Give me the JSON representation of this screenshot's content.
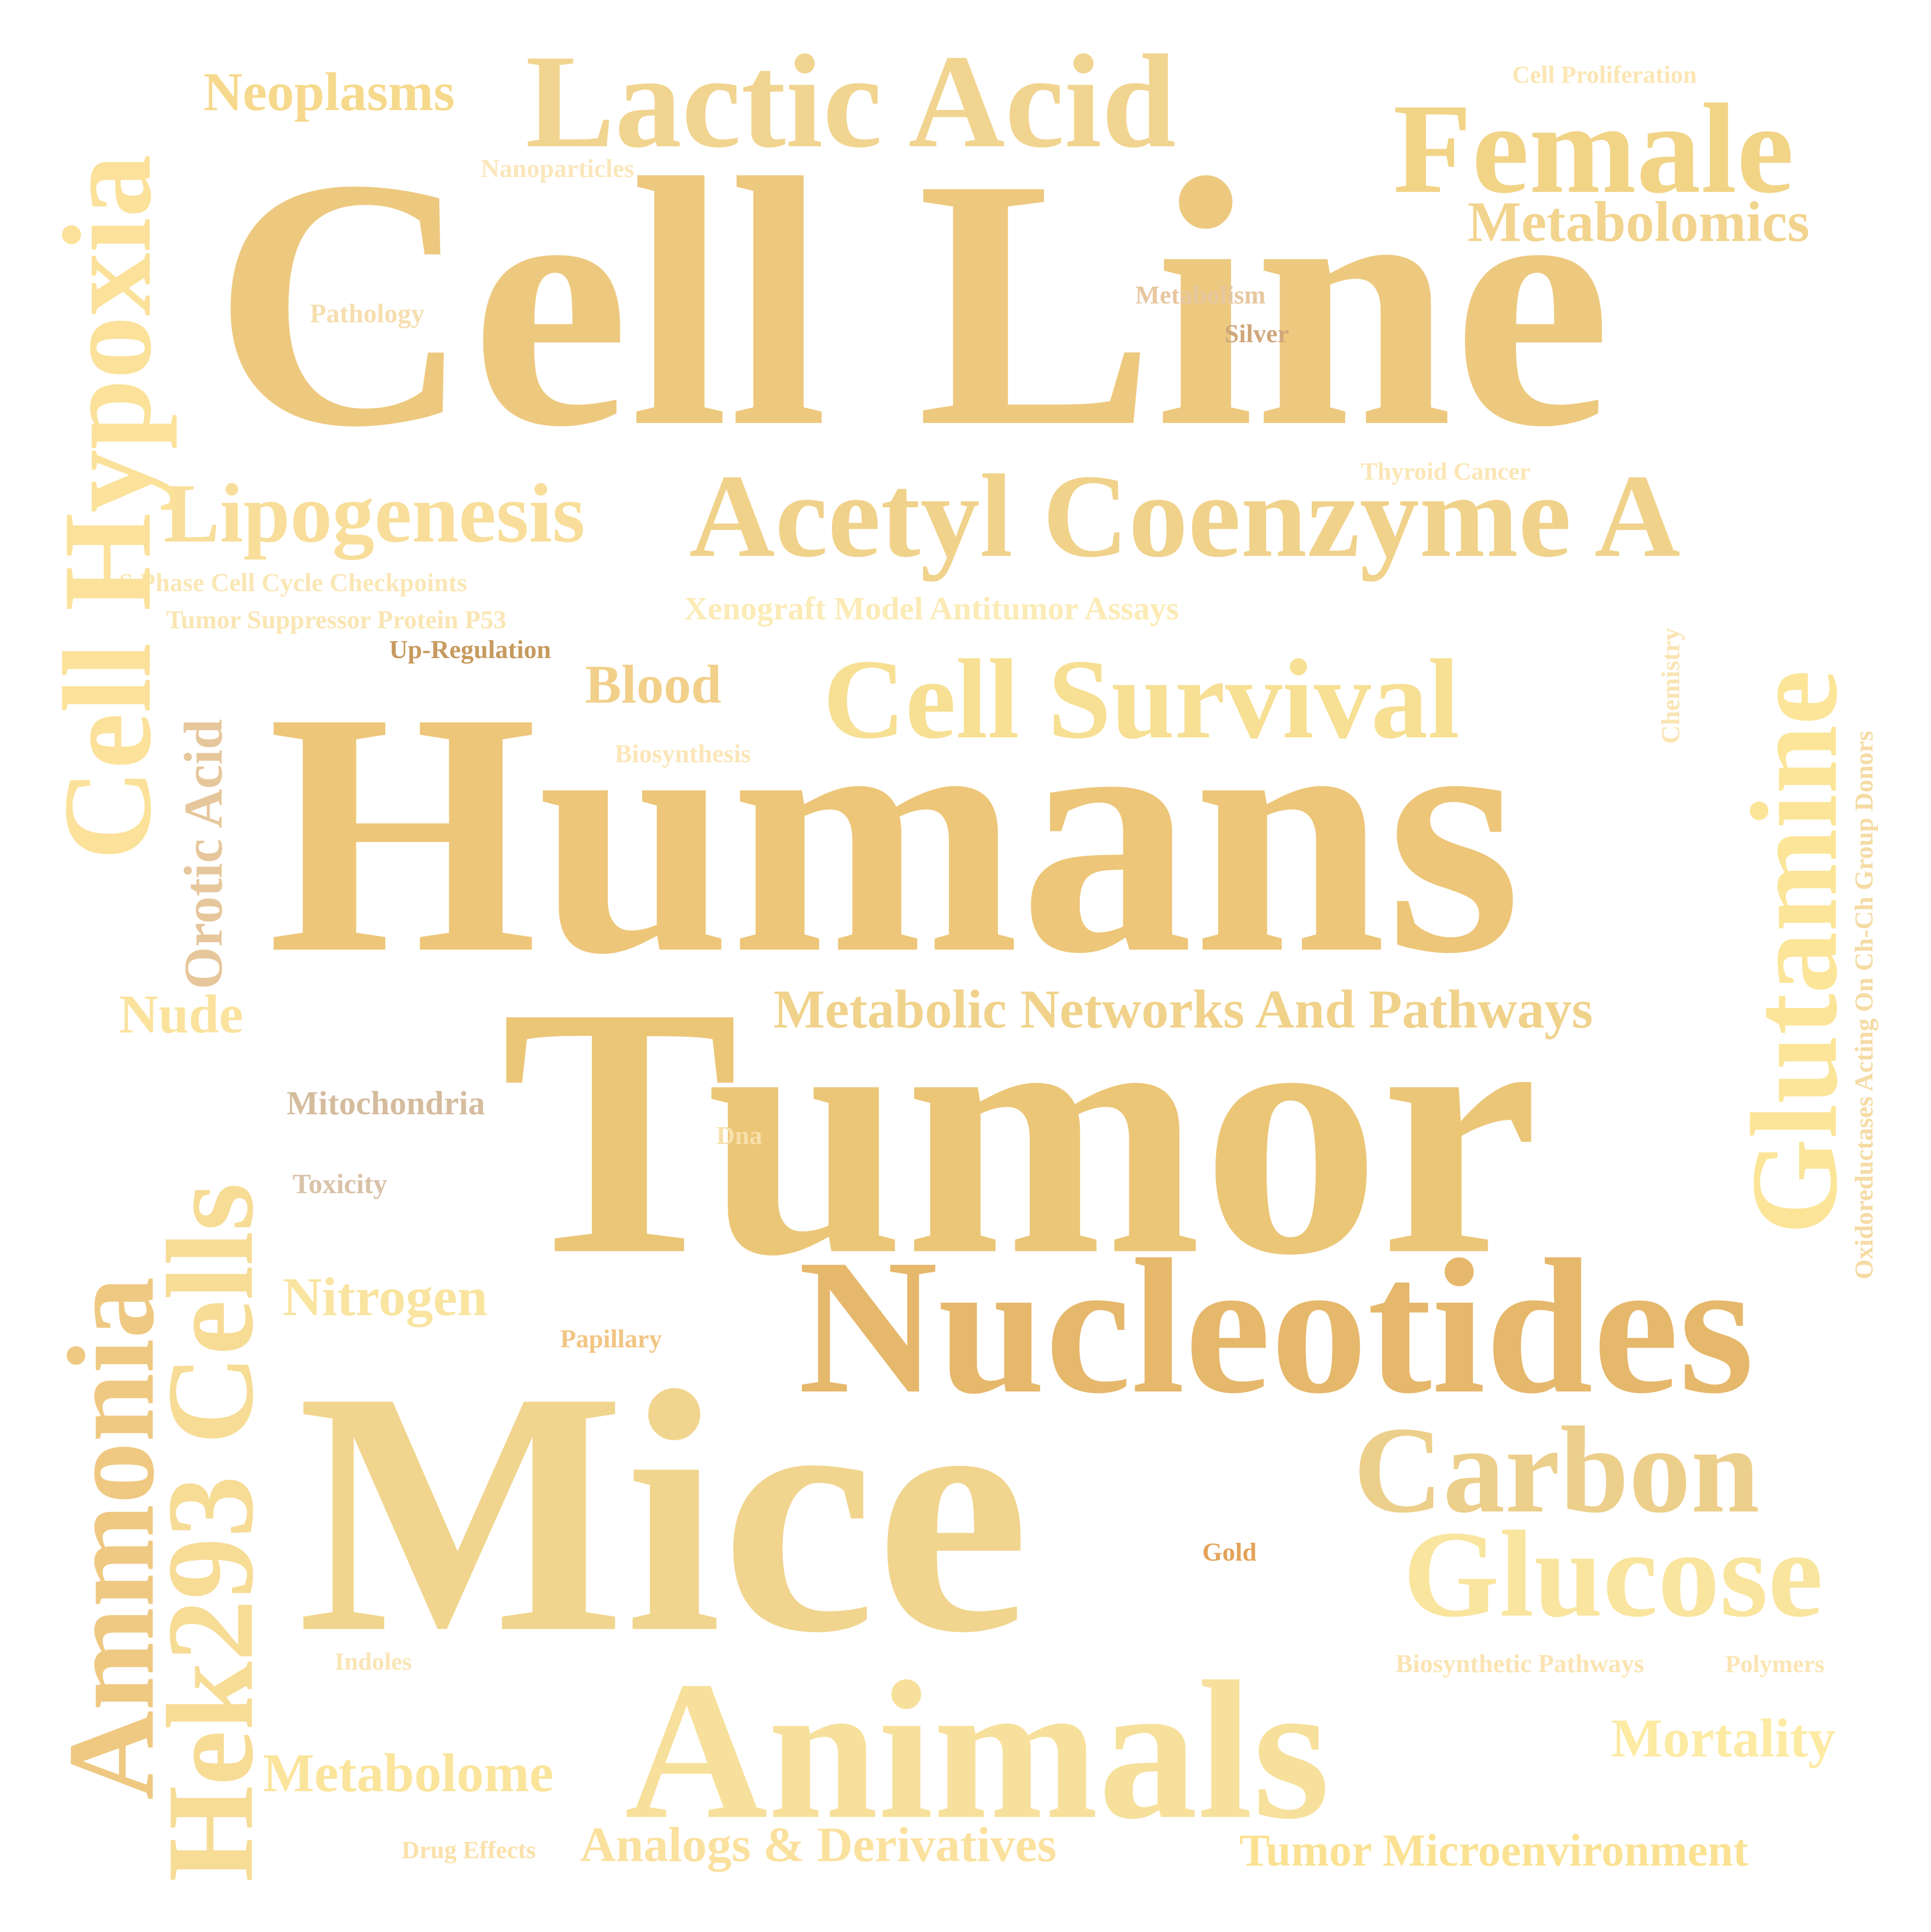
{
  "words": [
    {
      "id": "cell-line",
      "text": "Cell Line",
      "color": "#EDC97F"
    },
    {
      "id": "humans",
      "text": "Humans",
      "color": "#EDC679"
    },
    {
      "id": "tumor",
      "text": "Tumor",
      "color": "#EBC677"
    },
    {
      "id": "mice",
      "text": "Mice",
      "color": "#F1D58E"
    },
    {
      "id": "nucleotides",
      "text": "Nucleotides",
      "color": "#E6B86C"
    },
    {
      "id": "animals",
      "text": "Animals",
      "color": "#F7E09B"
    },
    {
      "id": "lactic-acid",
      "text": "Lactic Acid",
      "color": "#F1D490"
    },
    {
      "id": "female",
      "text": "Female",
      "color": "#F2D487"
    },
    {
      "id": "acetyl-coenzyme-a",
      "text": "Acetyl Coenzyme A",
      "color": "#F0D28B"
    },
    {
      "id": "cell-survival",
      "text": "Cell Survival",
      "color": "#F7DF93"
    },
    {
      "id": "carbon",
      "text": "Carbon",
      "color": "#EDCF8C"
    },
    {
      "id": "glucose",
      "text": "Glucose",
      "color": "#FAE59F"
    },
    {
      "id": "cell-hypoxia",
      "text": "Cell Hypoxia",
      "color": "#FBE19A"
    },
    {
      "id": "glutamine",
      "text": "Glutamine",
      "color": "#FCE598"
    },
    {
      "id": "ammonia",
      "text": "Ammonia",
      "color": "#EFC982"
    },
    {
      "id": "hek293-cells",
      "text": "Hek293 Cells",
      "color": "#F7DC96"
    },
    {
      "id": "lipogenesis",
      "text": "Lipogenesis",
      "color": "#F8DE9A"
    },
    {
      "id": "metabolomics",
      "text": "Metabolomics",
      "color": "#F2D48E"
    },
    {
      "id": "neoplasms",
      "text": "Neoplasms",
      "color": "#F6D98C"
    },
    {
      "id": "metabolic-networks",
      "text": "Metabolic Networks And Pathways",
      "color": "#F0D28B"
    },
    {
      "id": "blood",
      "text": "Blood",
      "color": "#F2D08A"
    },
    {
      "id": "orotic-acid",
      "text": "Orotic Acid",
      "color": "#E6C79C"
    },
    {
      "id": "nude",
      "text": "Nude",
      "color": "#FBE39E"
    },
    {
      "id": "nitrogen",
      "text": "Nitrogen",
      "color": "#F9E4A0"
    },
    {
      "id": "metabolome",
      "text": "Metabolome",
      "color": "#FBE49B"
    },
    {
      "id": "analogs-derivatives",
      "text": "Analogs & Derivatives",
      "color": "#FBE19E"
    },
    {
      "id": "tumor-microenvironment",
      "text": "Tumor Microenvironment",
      "color": "#FBE293"
    },
    {
      "id": "mortality",
      "text": "Mortality",
      "color": "#FDEAA3"
    },
    {
      "id": "mitochondria",
      "text": "Mitochondria",
      "color": "#D5BC9E"
    },
    {
      "id": "toxicity",
      "text": "Toxicity",
      "color": "#D9C2A8"
    },
    {
      "id": "xenograft",
      "text": "Xenograft Model Antitumor Assays",
      "color": "#FCEBB5"
    },
    {
      "id": "s-phase",
      "text": "S Phase Cell Cycle Checkpoints",
      "color": "#FAE7B4"
    },
    {
      "id": "tumor-suppressor",
      "text": "Tumor Suppressor Protein P53",
      "color": "#FAE6B3"
    },
    {
      "id": "up-regulation",
      "text": "Up-Regulation",
      "color": "#C79A5E"
    },
    {
      "id": "thyroid-cancer",
      "text": "Thyroid Cancer",
      "color": "#FBE6B5"
    },
    {
      "id": "cell-proliferation",
      "text": "Cell Proliferation",
      "color": "#FBE6B4"
    },
    {
      "id": "nanoparticles",
      "text": "Nanoparticles",
      "color": "#FAE7BB"
    },
    {
      "id": "pathology",
      "text": "Pathology",
      "color": "#F6DEAF"
    },
    {
      "id": "metabolism",
      "text": "Metabolism",
      "color": "#E7C7A0"
    },
    {
      "id": "silver",
      "text": "Silver",
      "color": "#CFA77B"
    },
    {
      "id": "biosynthesis",
      "text": "Biosynthesis",
      "color": "#FBE6B8"
    },
    {
      "id": "chemistry",
      "text": "Chemistry",
      "color": "#FAE4B2"
    },
    {
      "id": "oxidoreductases",
      "text": "Oxidoreductases Acting On Ch-Ch Group Donors",
      "color": "#F5DBA4"
    },
    {
      "id": "dna",
      "text": "Dna",
      "color": "#F7E0AA"
    },
    {
      "id": "papillary",
      "text": "Papillary",
      "color": "#F1C583"
    },
    {
      "id": "gold",
      "text": "Gold",
      "color": "#E3A35A"
    },
    {
      "id": "indoles",
      "text": "Indoles",
      "color": "#FAE5B6"
    },
    {
      "id": "biosynthetic-pathways",
      "text": "Biosynthetic Pathways",
      "color": "#FBE4B2"
    },
    {
      "id": "polymers",
      "text": "Polymers",
      "color": "#FBE5B3"
    },
    {
      "id": "drug-effects",
      "text": "Drug Effects",
      "color": "#FAE1AA"
    }
  ]
}
